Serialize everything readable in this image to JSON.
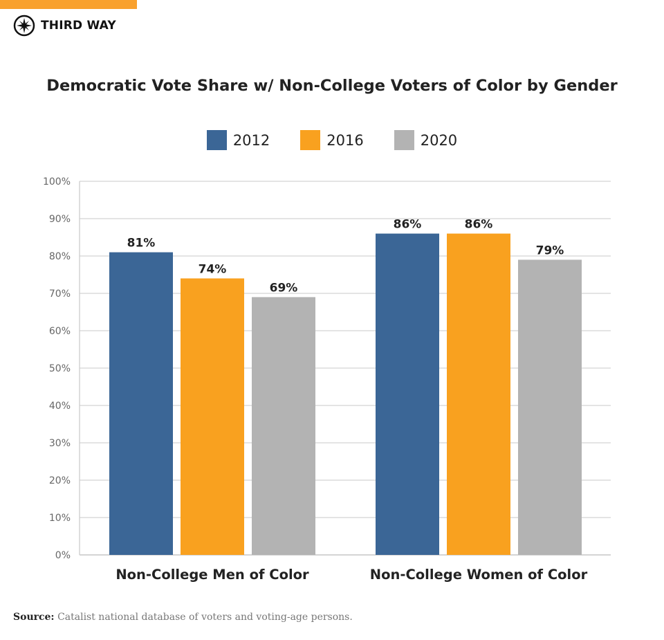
{
  "brand": {
    "name": "THIRD WAY",
    "accent": "#f9a12e",
    "icon": "compass-icon"
  },
  "chart_data": {
    "type": "bar",
    "title": "Democratic Vote Share w/ Non-College Voters of Color by Gender",
    "categories": [
      "Non-College Men of Color",
      "Non-College Women of Color"
    ],
    "series": [
      {
        "name": "2012",
        "color": "#3b6696",
        "values": [
          81,
          86
        ]
      },
      {
        "name": "2016",
        "color": "#f9a11f",
        "values": [
          74,
          86
        ]
      },
      {
        "name": "2020",
        "color": "#b3b3b3",
        "values": [
          69,
          79
        ]
      }
    ],
    "data_labels": [
      [
        "81%",
        "86%"
      ],
      [
        "74%",
        "86%"
      ],
      [
        "69%",
        "79%"
      ]
    ],
    "ylim": [
      0,
      100
    ],
    "yticks": [
      "0%",
      "10%",
      "20%",
      "30%",
      "40%",
      "50%",
      "60%",
      "70%",
      "80%",
      "90%",
      "100%"
    ],
    "grid": true,
    "legend": "top",
    "xlabel": "",
    "ylabel": ""
  },
  "source": {
    "label": "Source:",
    "text": "Catalist national database of voters and voting-age persons."
  }
}
